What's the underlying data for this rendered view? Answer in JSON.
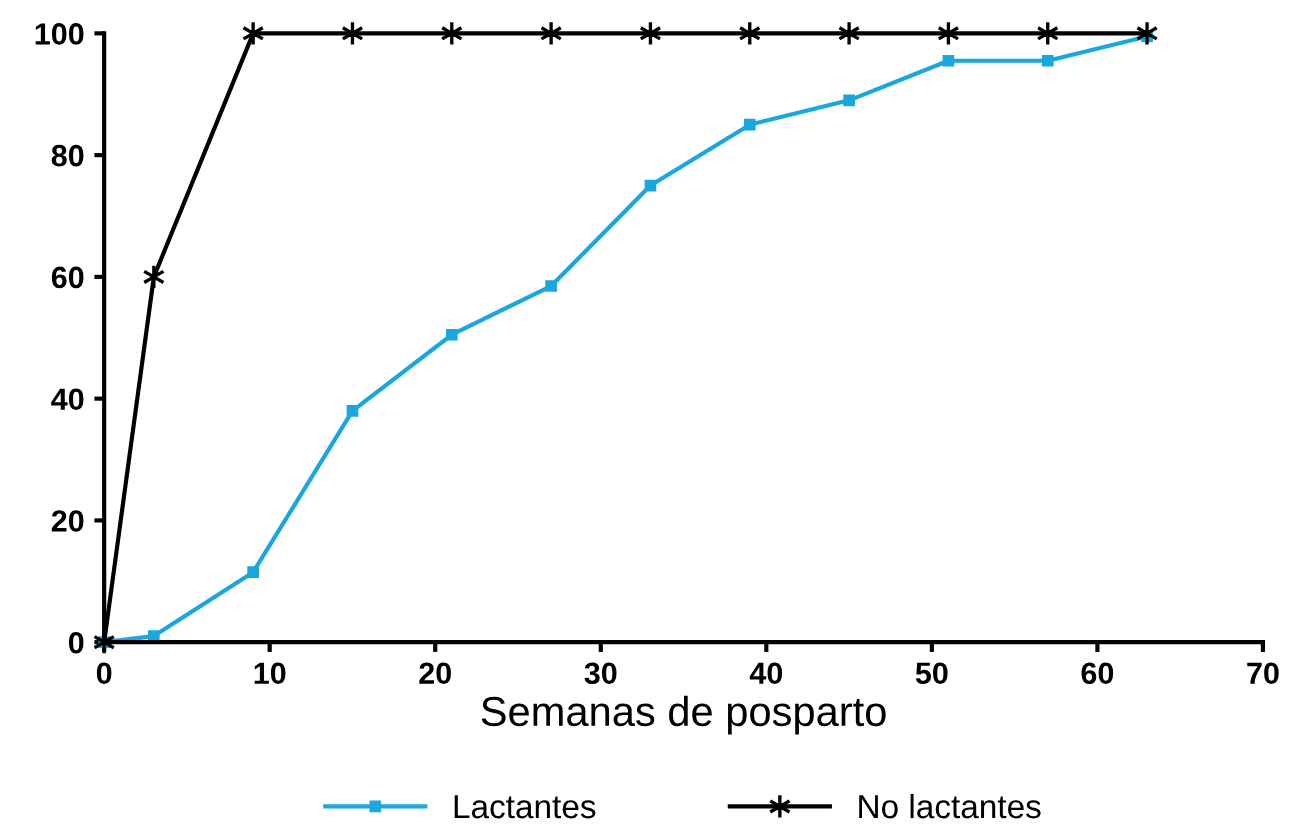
{
  "chart_data": {
    "type": "line",
    "xlabel": "Semanas de posparto",
    "xlim": [
      0,
      70
    ],
    "ylim": [
      0,
      100
    ],
    "xticks": [
      0,
      10,
      20,
      30,
      40,
      50,
      60,
      70
    ],
    "yticks": [
      0,
      20,
      40,
      60,
      80,
      100
    ],
    "grid": false,
    "legend": "bottom",
    "line_style": "solid",
    "series": [
      {
        "name": "Lactantes",
        "color": "#1aa7e0",
        "marker": "square",
        "x": [
          0,
          3,
          9,
          15,
          21,
          27,
          33,
          39,
          45,
          51,
          57,
          63
        ],
        "values": [
          0,
          1,
          11.5,
          38,
          50.5,
          58.5,
          75,
          85,
          89,
          95.5,
          95.5,
          99.5
        ]
      },
      {
        "name": "No lactantes",
        "color": "#000000",
        "marker": "cross",
        "x": [
          0,
          3,
          9,
          15,
          21,
          27,
          33,
          39,
          45,
          51,
          57,
          63
        ],
        "values": [
          0,
          60,
          100,
          100,
          100,
          100,
          100,
          100,
          100,
          100,
          100,
          100
        ]
      }
    ]
  }
}
